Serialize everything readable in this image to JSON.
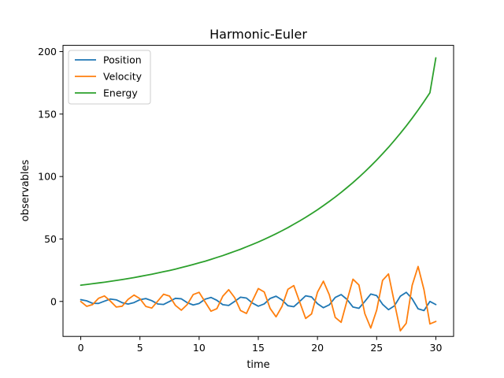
{
  "chart_data": {
    "type": "line",
    "title": "Harmonic-Euler",
    "xlabel": "time",
    "ylabel": "observables",
    "xlim": [
      -1.5,
      31.5
    ],
    "ylim": [
      -28,
      205
    ],
    "x_ticks": [
      0,
      5,
      10,
      15,
      20,
      25,
      30
    ],
    "x_tick_labels": [
      "0",
      "5",
      "10",
      "15",
      "20",
      "25",
      "30"
    ],
    "y_ticks": [
      0,
      50,
      100,
      150,
      200
    ],
    "y_tick_labels": [
      "0",
      "50",
      "100",
      "150",
      "200"
    ],
    "grid": false,
    "legend_position": "upper-left",
    "x": [
      0,
      0.5,
      1,
      1.5,
      2,
      2.5,
      3,
      3.5,
      4,
      4.5,
      5,
      5.5,
      6,
      6.5,
      7,
      7.5,
      8,
      8.5,
      9,
      9.5,
      10,
      10.5,
      11,
      11.5,
      12,
      12.5,
      13,
      13.5,
      14,
      14.5,
      15,
      15.5,
      16,
      16.5,
      17,
      17.5,
      18,
      18.5,
      19,
      19.5,
      20,
      20.5,
      21,
      21.5,
      22,
      22.5,
      23,
      23.5,
      24,
      24.5,
      25,
      25.5,
      26,
      26.5,
      27,
      27.5,
      28,
      28.5,
      29,
      29.5,
      30
    ],
    "series": [
      {
        "name": "Position",
        "color": "#1f77b4",
        "values": [
          1.4,
          0.5,
          -1.5,
          -1.6,
          0.2,
          1.9,
          1.3,
          -1.0,
          -2.1,
          -0.9,
          1.4,
          2.3,
          0.6,
          -2.0,
          -2.4,
          0.0,
          2.5,
          2.1,
          -1.0,
          -2.8,
          -1.6,
          1.8,
          3.2,
          0.9,
          -2.6,
          -3.2,
          0.0,
          3.4,
          2.7,
          -1.3,
          -3.8,
          -2.0,
          2.4,
          4.2,
          1.2,
          -3.4,
          -4.2,
          0.0,
          4.5,
          3.6,
          -1.8,
          -5.0,
          -2.7,
          3.2,
          5.5,
          1.6,
          -4.5,
          -5.5,
          0.0,
          5.9,
          4.7,
          -2.3,
          -6.6,
          -3.5,
          4.2,
          7.3,
          2.1,
          -5.9,
          -7.3,
          0.0,
          -2.5
        ]
      },
      {
        "name": "Velocity",
        "color": "#ff7f0e",
        "values": [
          0.0,
          -3.9,
          -2.5,
          2.5,
          4.4,
          0.3,
          -4.5,
          -3.8,
          1.7,
          5.1,
          2.2,
          -4.0,
          -5.3,
          0.2,
          5.8,
          4.3,
          -3.2,
          -7.0,
          -2.4,
          5.5,
          7.3,
          -0.3,
          -7.8,
          -5.8,
          4.2,
          9.4,
          3.1,
          -7.3,
          -9.6,
          0.4,
          10.3,
          7.6,
          -5.6,
          -12.3,
          -4.0,
          9.7,
          12.7,
          -0.5,
          -13.6,
          -10.0,
          7.4,
          16.2,
          5.3,
          -12.8,
          -16.7,
          0.8,
          17.8,
          13.2,
          -9.8,
          -21.3,
          -7.0,
          16.9,
          22.0,
          -1.0,
          -23.5,
          -17.4,
          12.9,
          28.0,
          9.3,
          -18.0,
          -16.0
        ]
      },
      {
        "name": "Energy",
        "color": "#2ca02c",
        "values": [
          13.0,
          13.6,
          14.2,
          14.8,
          15.4,
          16.1,
          16.8,
          17.5,
          18.3,
          19.1,
          20.0,
          20.9,
          21.8,
          22.8,
          23.8,
          24.8,
          25.9,
          27.1,
          28.3,
          29.6,
          30.9,
          32.2,
          33.7,
          35.2,
          36.7,
          38.4,
          40.1,
          41.8,
          43.7,
          45.6,
          47.6,
          49.7,
          51.9,
          54.2,
          56.6,
          59.1,
          61.8,
          64.5,
          67.3,
          70.3,
          73.4,
          76.7,
          80.1,
          83.6,
          87.3,
          91.2,
          95.2,
          99.4,
          103.8,
          108.4,
          113.2,
          118.2,
          123.4,
          128.9,
          134.6,
          140.5,
          146.7,
          153.2,
          160.0,
          167.1,
          195.0
        ]
      }
    ]
  }
}
